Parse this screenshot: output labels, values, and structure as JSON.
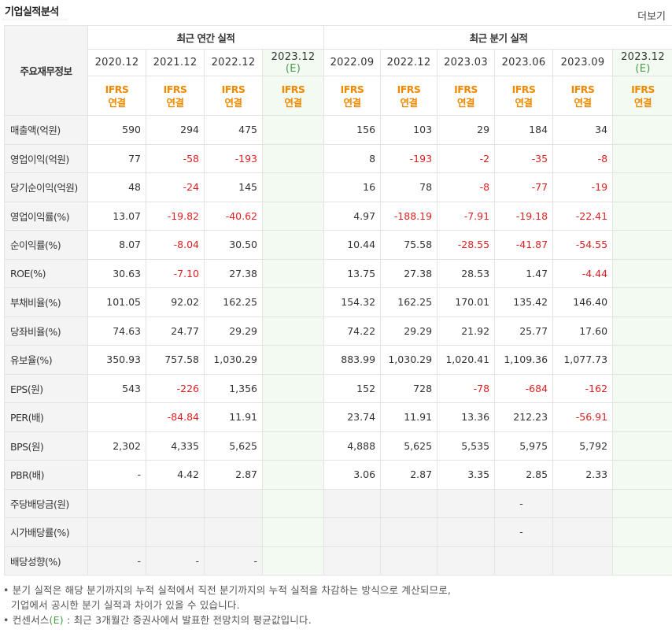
{
  "header": {
    "title": "기업실적분석",
    "more_label": "더보기"
  },
  "table": {
    "corner_label": "주요재무정보",
    "annual_group": "최근 연간 실적",
    "quarter_group": "최근 분기 실적",
    "annual_years": [
      "2020.12",
      "2021.12",
      "2022.12",
      "2023.12"
    ],
    "quarter_years": [
      "2022.09",
      "2022.12",
      "2023.03",
      "2023.06",
      "2023.09",
      "2023.12"
    ],
    "estimate_mark": "(E)",
    "ifrs_top": "IFRS",
    "ifrs_bottom": "연결",
    "rows": [
      {
        "label": "매출액(억원)",
        "values": [
          "590",
          "294",
          "475",
          "",
          "156",
          "103",
          "29",
          "184",
          "34",
          ""
        ]
      },
      {
        "label": "영업이익(억원)",
        "values": [
          "77",
          "-58",
          "-193",
          "",
          "8",
          "-193",
          "-2",
          "-35",
          "-8",
          ""
        ]
      },
      {
        "label": "당기순이익(억원)",
        "values": [
          "48",
          "-24",
          "145",
          "",
          "16",
          "78",
          "-8",
          "-77",
          "-19",
          ""
        ]
      },
      {
        "label": "영업이익률(%)",
        "values": [
          "13.07",
          "-19.82",
          "-40.62",
          "",
          "4.97",
          "-188.19",
          "-7.91",
          "-19.18",
          "-22.41",
          ""
        ]
      },
      {
        "label": "순이익률(%)",
        "values": [
          "8.07",
          "-8.04",
          "30.50",
          "",
          "10.44",
          "75.58",
          "-28.55",
          "-41.87",
          "-54.55",
          ""
        ]
      },
      {
        "label": "ROE(%)",
        "values": [
          "30.63",
          "-7.10",
          "27.38",
          "",
          "13.75",
          "27.38",
          "28.53",
          "1.47",
          "-4.44",
          ""
        ]
      },
      {
        "label": "부채비율(%)",
        "values": [
          "101.05",
          "92.02",
          "162.25",
          "",
          "154.32",
          "162.25",
          "170.01",
          "135.42",
          "146.40",
          ""
        ]
      },
      {
        "label": "당좌비율(%)",
        "values": [
          "74.63",
          "24.77",
          "29.29",
          "",
          "74.22",
          "29.29",
          "21.92",
          "25.77",
          "17.60",
          ""
        ]
      },
      {
        "label": "유보율(%)",
        "values": [
          "350.93",
          "757.58",
          "1,030.29",
          "",
          "883.99",
          "1,030.29",
          "1,020.41",
          "1,109.36",
          "1,077.73",
          ""
        ]
      },
      {
        "label": "EPS(원)",
        "values": [
          "543",
          "-226",
          "1,356",
          "",
          "152",
          "728",
          "-78",
          "-684",
          "-162",
          ""
        ]
      },
      {
        "label": "PER(배)",
        "values": [
          "",
          "-84.84",
          "11.91",
          "",
          "23.74",
          "11.91",
          "13.36",
          "212.23",
          "-56.91",
          ""
        ]
      },
      {
        "label": "BPS(원)",
        "values": [
          "2,302",
          "4,335",
          "5,625",
          "",
          "4,888",
          "5,625",
          "5,535",
          "5,975",
          "5,792",
          ""
        ]
      },
      {
        "label": "PBR(배)",
        "values": [
          "-",
          "4.42",
          "2.87",
          "",
          "3.06",
          "2.87",
          "3.35",
          "2.85",
          "2.33",
          ""
        ]
      },
      {
        "label": "주당배당금(원)",
        "values": [
          "",
          "",
          "",
          "",
          "",
          "",
          "",
          "-",
          "",
          ""
        ]
      },
      {
        "label": "시가배당률(%)",
        "values": [
          "",
          "",
          "",
          "",
          "",
          "",
          "",
          "-",
          "",
          ""
        ]
      },
      {
        "label": "배당성향(%)",
        "values": [
          "-",
          "-",
          "-",
          "",
          "",
          "",
          "",
          "",
          "",
          ""
        ]
      }
    ]
  },
  "footnotes": {
    "line1": "• 분기 실적은 해당 분기까지의 누적 실적에서 직전 분기까지의 누적 실적을 차감하는 방식으로 계산되므로,",
    "line2": "기업에서 공시한 분기 실적과 차이가 있을 수 있습니다.",
    "line3_prefix": "• 컨센서스",
    "line3_mark": "(E)",
    "line3_suffix": " : 최근 3개월간 증권사에서 발표한 전망치의 평균값입니다."
  },
  "colors": {
    "negative": "#e02020",
    "ifrs": "#f08a00",
    "estimate_bg": "#f2faf2",
    "estimate_text": "#4a9a4a"
  }
}
